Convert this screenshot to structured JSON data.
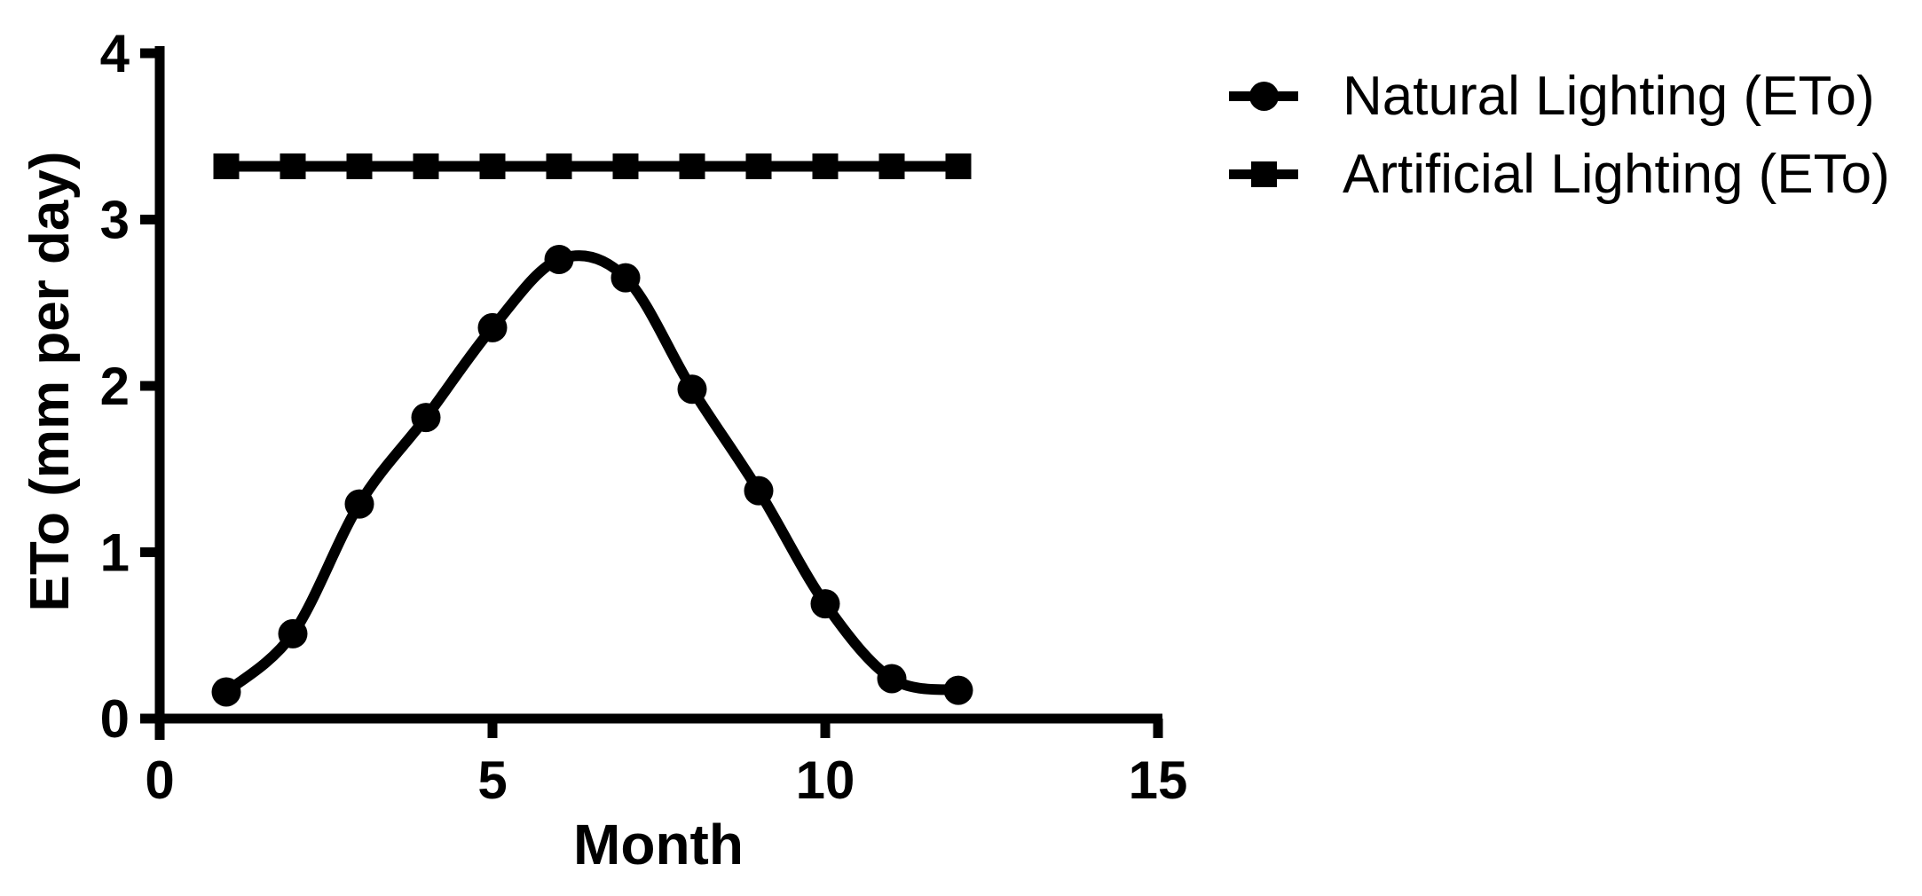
{
  "page": {
    "background_color": "#ffffff",
    "ink_color": "#000000"
  },
  "chart_data": {
    "type": "line",
    "title": "",
    "xlabel": "Month",
    "ylabel": "ETo (mm per day)",
    "x": [
      1,
      2,
      3,
      4,
      5,
      6,
      7,
      8,
      9,
      10,
      11,
      12
    ],
    "xlim": [
      0,
      15
    ],
    "ylim": [
      0,
      4
    ],
    "xticks": [
      0,
      5,
      10,
      15
    ],
    "yticks": [
      0,
      1,
      2,
      3,
      4
    ],
    "grid": false,
    "legend_position": "top-right",
    "series": [
      {
        "name": "Natural Lighting (ETo)",
        "marker": "circle",
        "line": "smooth",
        "color": "#000000",
        "values": [
          0.16,
          0.51,
          1.29,
          1.81,
          2.35,
          2.76,
          2.65,
          1.98,
          1.37,
          0.69,
          0.24,
          0.17
        ]
      },
      {
        "name": "Artificial Lighting (ETo)",
        "marker": "square",
        "line": "straight",
        "color": "#000000",
        "values": [
          3.32,
          3.32,
          3.32,
          3.32,
          3.32,
          3.32,
          3.32,
          3.32,
          3.32,
          3.32,
          3.32,
          3.32
        ]
      }
    ]
  },
  "legend": {
    "items": [
      {
        "label": "Natural Lighting (ETo)",
        "marker": "circle"
      },
      {
        "label": "Artificial Lighting (ETo)",
        "marker": "square"
      }
    ]
  }
}
